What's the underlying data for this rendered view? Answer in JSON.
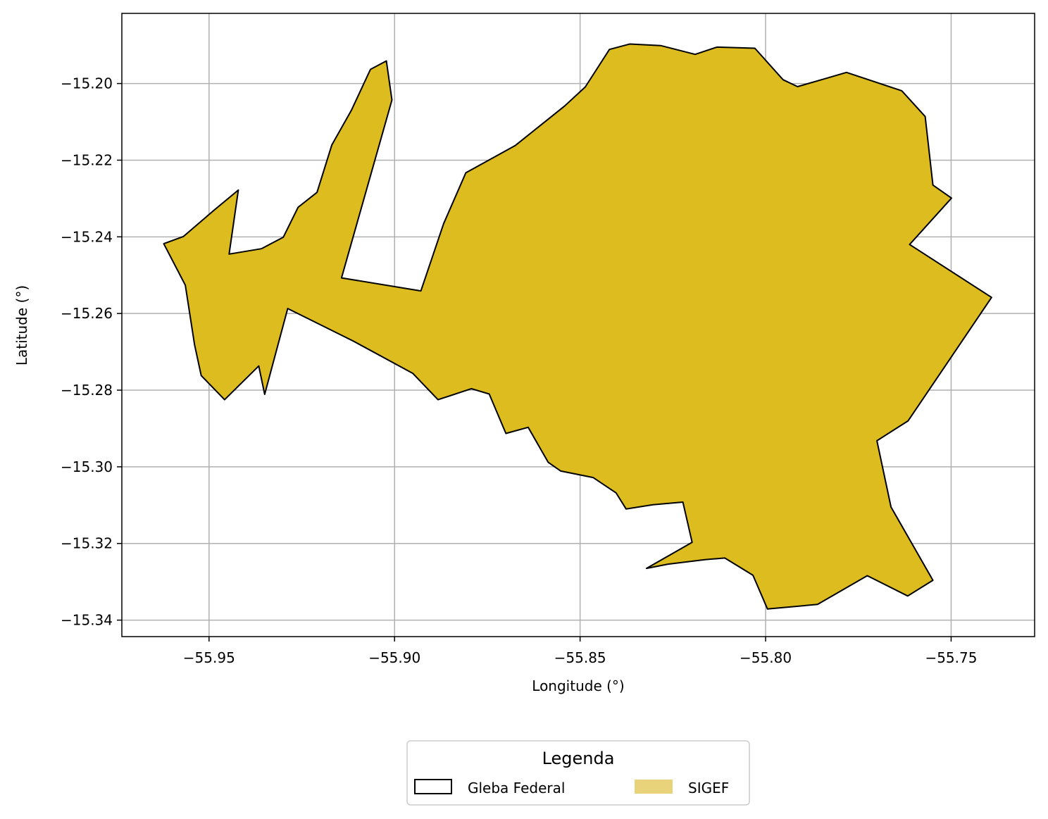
{
  "chart_data": {
    "type": "map",
    "xlabel": "Longitude (°)",
    "ylabel": "Latitude (°)",
    "xlim": [
      -55.9735,
      -55.7275
    ],
    "ylim": [
      -15.3443,
      -15.1817
    ],
    "x_ticks": [
      -55.95,
      -55.9,
      -55.85,
      -55.8,
      -55.75
    ],
    "x_tick_labels": [
      "−55.95",
      "−55.90",
      "−55.85",
      "−55.80",
      "−55.75"
    ],
    "y_ticks": [
      -15.2,
      -15.22,
      -15.24,
      -15.26,
      -15.28,
      -15.3,
      -15.32,
      -15.34
    ],
    "y_tick_labels": [
      "−15.20",
      "−15.22",
      "−15.24",
      "−15.26",
      "−15.28",
      "−15.30",
      "−15.32",
      "−15.34"
    ],
    "grid": true,
    "legend": {
      "title": "Legenda",
      "placement": "bottom-center",
      "entries": [
        {
          "label": "Gleba Federal",
          "style": "outline",
          "color": "#000000"
        },
        {
          "label": "SIGEF",
          "style": "fill",
          "color": "#e8d27a"
        }
      ]
    },
    "polygon": {
      "fill": "#dcbc1f",
      "stroke": "#000000",
      "points": [
        [
          -55.9022,
          -15.1941
        ],
        [
          -55.9007,
          -15.2043
        ],
        [
          -55.9143,
          -15.2507
        ],
        [
          -55.8929,
          -15.2541
        ],
        [
          -55.8868,
          -15.2366
        ],
        [
          -55.8808,
          -15.2233
        ],
        [
          -55.8675,
          -15.2162
        ],
        [
          -55.8542,
          -15.2059
        ],
        [
          -55.8486,
          -15.2009
        ],
        [
          -55.8421,
          -15.1911
        ],
        [
          -55.8366,
          -15.1897
        ],
        [
          -55.8283,
          -15.1901
        ],
        [
          -55.819,
          -15.1924
        ],
        [
          -55.8131,
          -15.1905
        ],
        [
          -55.8029,
          -15.1908
        ],
        [
          -55.7953,
          -15.199
        ],
        [
          -55.7914,
          -15.2008
        ],
        [
          -55.7842,
          -15.1988
        ],
        [
          -55.7782,
          -15.1971
        ],
        [
          -55.7633,
          -15.2019
        ],
        [
          -55.757,
          -15.2086
        ],
        [
          -55.7549,
          -15.2265
        ],
        [
          -55.7499,
          -15.2299
        ],
        [
          -55.7612,
          -15.242
        ],
        [
          -55.7391,
          -15.2558
        ],
        [
          -55.7616,
          -15.288
        ],
        [
          -55.77,
          -15.2932
        ],
        [
          -55.7662,
          -15.3105
        ],
        [
          -55.7549,
          -15.3296
        ],
        [
          -55.7617,
          -15.3337
        ],
        [
          -55.7726,
          -15.3284
        ],
        [
          -55.786,
          -15.3359
        ],
        [
          -55.7995,
          -15.3371
        ],
        [
          -55.8034,
          -15.3283
        ],
        [
          -55.811,
          -15.3238
        ],
        [
          -55.8162,
          -15.3242
        ],
        [
          -55.8263,
          -15.3254
        ],
        [
          -55.8321,
          -15.3265
        ],
        [
          -55.8198,
          -15.3197
        ],
        [
          -55.8223,
          -15.3092
        ],
        [
          -55.8304,
          -15.3099
        ],
        [
          -55.8376,
          -15.311
        ],
        [
          -55.8403,
          -15.3068
        ],
        [
          -55.8465,
          -15.3028
        ],
        [
          -55.8552,
          -15.3011
        ],
        [
          -55.8586,
          -15.2988
        ],
        [
          -55.864,
          -15.2897
        ],
        [
          -55.87,
          -15.2913
        ],
        [
          -55.8745,
          -15.281
        ],
        [
          -55.8793,
          -15.2796
        ],
        [
          -55.8883,
          -15.2825
        ],
        [
          -55.8951,
          -15.2756
        ],
        [
          -55.9111,
          -15.2672
        ],
        [
          -55.9288,
          -15.2587
        ],
        [
          -55.935,
          -15.2811
        ],
        [
          -55.9366,
          -15.2737
        ],
        [
          -55.9458,
          -15.2825
        ],
        [
          -55.9521,
          -15.2762
        ],
        [
          -55.9539,
          -15.2682
        ],
        [
          -55.9564,
          -15.2526
        ],
        [
          -55.9622,
          -15.2418
        ],
        [
          -55.9569,
          -15.2399
        ],
        [
          -55.9486,
          -15.233
        ],
        [
          -55.9421,
          -15.2278
        ],
        [
          -55.9446,
          -15.2445
        ],
        [
          -55.9359,
          -15.2431
        ],
        [
          -55.93,
          -15.2401
        ],
        [
          -55.926,
          -15.2323
        ],
        [
          -55.9209,
          -15.2284
        ],
        [
          -55.9169,
          -15.216
        ],
        [
          -55.9116,
          -15.2069
        ],
        [
          -55.9065,
          -15.1963
        ]
      ]
    }
  }
}
